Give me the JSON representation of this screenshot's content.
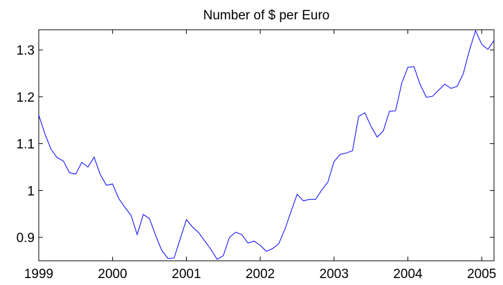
{
  "chart_data": {
    "type": "line",
    "title": "Number of $ per Euro",
    "x": [
      1999,
      1999.0833,
      1999.1667,
      1999.25,
      1999.3333,
      1999.4167,
      1999.5,
      1999.5833,
      1999.6667,
      1999.75,
      1999.8333,
      1999.9167,
      2000,
      2000.0833,
      2000.1667,
      2000.25,
      2000.3333,
      2000.4167,
      2000.5,
      2000.5833,
      2000.6667,
      2000.75,
      2000.8333,
      2000.9167,
      2001,
      2001.0833,
      2001.1667,
      2001.25,
      2001.3333,
      2001.4167,
      2001.5,
      2001.5833,
      2001.6667,
      2001.75,
      2001.8333,
      2001.9167,
      2002,
      2002.0833,
      2002.1667,
      2002.25,
      2002.3333,
      2002.4167,
      2002.5,
      2002.5833,
      2002.6667,
      2002.75,
      2002.8333,
      2002.9167,
      2003,
      2003.0833,
      2003.1667,
      2003.25,
      2003.3333,
      2003.4167,
      2003.5,
      2003.5833,
      2003.6667,
      2003.75,
      2003.8333,
      2003.9167,
      2004,
      2004.0833,
      2004.1667,
      2004.25,
      2004.3333,
      2004.4167,
      2004.5,
      2004.5833,
      2004.6667,
      2004.75,
      2004.8333,
      2004.9167,
      2005,
      2005.0833,
      2005.1667
    ],
    "values": [
      1.161,
      1.121,
      1.088,
      1.07,
      1.063,
      1.038,
      1.035,
      1.06,
      1.05,
      1.071,
      1.034,
      1.011,
      1.014,
      0.983,
      0.964,
      0.947,
      0.906,
      0.949,
      0.94,
      0.904,
      0.872,
      0.855,
      0.856,
      0.897,
      0.938,
      0.922,
      0.91,
      0.892,
      0.874,
      0.853,
      0.861,
      0.9,
      0.911,
      0.906,
      0.888,
      0.892,
      0.883,
      0.87,
      0.876,
      0.886,
      0.917,
      0.955,
      0.992,
      0.978,
      0.981,
      0.981,
      1.001,
      1.018,
      1.062,
      1.077,
      1.08,
      1.085,
      1.158,
      1.166,
      1.137,
      1.114,
      1.127,
      1.169,
      1.17,
      1.229,
      1.263,
      1.264,
      1.226,
      1.199,
      1.201,
      1.214,
      1.227,
      1.218,
      1.222,
      1.249,
      1.299,
      1.341,
      1.312,
      1.301,
      1.32
    ],
    "color": "#0000ff",
    "xlim": [
      1999,
      2005.1667
    ],
    "xticks": [
      1999,
      2000,
      2001,
      2002,
      2003,
      2004,
      2005
    ],
    "ylim": [
      0.85,
      1.343
    ],
    "yticks": [
      0.9,
      1,
      1.1,
      1.2,
      1.3
    ],
    "grid": false
  }
}
